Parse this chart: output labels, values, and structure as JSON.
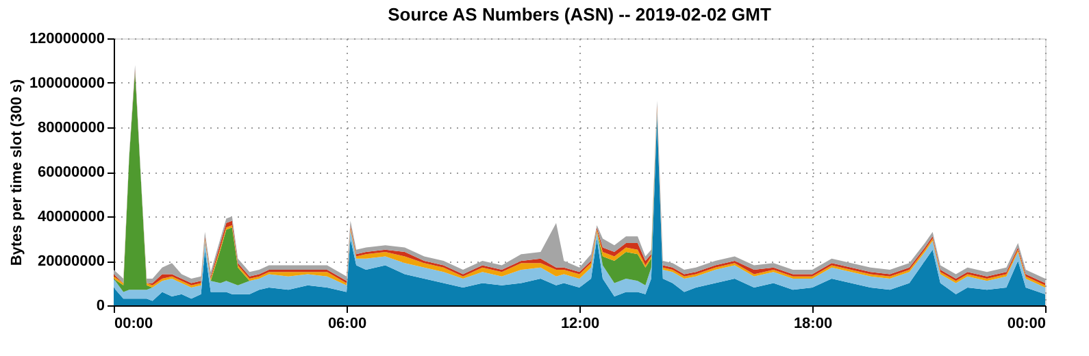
{
  "chart_data": {
    "type": "area",
    "stacked": true,
    "title": "Source AS Numbers (ASN) -- 2019-02-02 GMT",
    "ylabel": "Bytes per time slot (300 s)",
    "x": [
      0,
      0.25,
      0.4,
      0.55,
      0.7,
      0.85,
      1.0,
      1.25,
      1.5,
      1.75,
      2.0,
      2.25,
      2.35,
      2.5,
      2.75,
      2.9,
      3.05,
      3.2,
      3.5,
      3.75,
      4.0,
      4.5,
      5.0,
      5.5,
      6.0,
      6.1,
      6.25,
      6.5,
      7.0,
      7.5,
      8.0,
      8.5,
      9.0,
      9.5,
      10.0,
      10.5,
      11.0,
      11.4,
      11.6,
      12.0,
      12.3,
      12.45,
      12.6,
      12.9,
      13.2,
      13.5,
      13.7,
      13.85,
      14.0,
      14.15,
      14.4,
      14.7,
      15.0,
      15.5,
      16.0,
      16.5,
      17.0,
      17.5,
      18.0,
      18.5,
      19.0,
      19.5,
      20.0,
      20.5,
      20.9,
      21.1,
      21.3,
      21.7,
      22.0,
      22.5,
      23.0,
      23.3,
      23.5,
      24.0
    ],
    "series": [
      {
        "color": "#0a7fb0",
        "values": [
          8000000.0,
          3000000.0,
          3000000.0,
          3000000.0,
          3000000.0,
          3000000.0,
          2000000.0,
          6000000.0,
          4000000.0,
          5000000.0,
          3000000.0,
          5000000.0,
          25000000.0,
          6000000.0,
          6000000.0,
          6000000.0,
          5000000.0,
          5000000.0,
          5000000.0,
          7000000.0,
          8000000.0,
          7000000.0,
          9000000.0,
          8000000.0,
          6000000.0,
          30000000.0,
          18000000.0,
          16000000.0,
          18000000.0,
          14000000.0,
          12000000.0,
          10000000.0,
          8000000.0,
          10000000.0,
          9000000.0,
          10000000.0,
          12000000.0,
          9000000.0,
          10000000.0,
          8000000.0,
          12000000.0,
          30000000.0,
          12000000.0,
          4000000.0,
          6000000.0,
          6000000.0,
          5000000.0,
          12000000.0,
          85000000.0,
          12000000.0,
          10000000.0,
          6000000.0,
          8000000.0,
          10000000.0,
          12000000.0,
          8000000.0,
          10000000.0,
          7000000.0,
          8000000.0,
          12000000.0,
          10000000.0,
          8000000.0,
          7000000.0,
          10000000.0,
          20000000.0,
          25000000.0,
          10000000.0,
          5000000.0,
          8000000.0,
          7000000.0,
          8000000.0,
          20000000.0,
          8000000.0,
          5000000.0
        ]
      },
      {
        "color": "#86c2e4",
        "values": [
          4000000.0,
          3000000.0,
          4000000.0,
          4000000.0,
          4000000.0,
          4000000.0,
          6000000.0,
          5000000.0,
          8000000.0,
          5000000.0,
          5000000.0,
          4000000.0,
          4000000.0,
          5000000.0,
          4000000.0,
          5000000.0,
          5000000.0,
          4000000.0,
          6000000.0,
          5000000.0,
          6000000.0,
          6000000.0,
          5000000.0,
          5000000.0,
          3000000.0,
          4000000.0,
          3000000.0,
          5000000.0,
          4000000.0,
          5000000.0,
          5000000.0,
          5000000.0,
          4000000.0,
          5000000.0,
          4000000.0,
          6000000.0,
          5000000.0,
          4000000.0,
          4000000.0,
          4000000.0,
          5000000.0,
          3000000.0,
          6000000.0,
          6000000.0,
          6000000.0,
          5000000.0,
          4000000.0,
          5000000.0,
          3000000.0,
          4000000.0,
          5000000.0,
          6000000.0,
          5000000.0,
          6000000.0,
          6000000.0,
          5000000.0,
          5000000.0,
          5000000.0,
          4000000.0,
          5000000.0,
          5000000.0,
          5000000.0,
          5000000.0,
          5000000.0,
          4000000.0,
          4000000.0,
          4000000.0,
          5000000.0,
          5000000.0,
          4000000.0,
          5000000.0,
          4000000.0,
          4000000.0,
          3000000.0
        ]
      },
      {
        "color": "#4f9a2f",
        "values": [
          0,
          3000000.0,
          60000000.0,
          98000000.0,
          50000000.0,
          2000000.0,
          0,
          0,
          0,
          0,
          0,
          0,
          0,
          0,
          15000000.0,
          23000000.0,
          25000000.0,
          8000000.0,
          0,
          0,
          0,
          0,
          0,
          0,
          0,
          0,
          0,
          0,
          0,
          0,
          0,
          0,
          0,
          0,
          0,
          0,
          0,
          0,
          0,
          0,
          0,
          0,
          4000000.0,
          10000000.0,
          12000000.0,
          12000000.0,
          8000000.0,
          4000000.0,
          0,
          0,
          0,
          0,
          0,
          0,
          0,
          0,
          0,
          0,
          0,
          0,
          0,
          0,
          0,
          0,
          0,
          0,
          0,
          0,
          0,
          0,
          0,
          0,
          0,
          0
        ]
      },
      {
        "color": "#f0a30a",
        "values": [
          1000000.0,
          1000000.0,
          0,
          0,
          0,
          1000000.0,
          1000000.0,
          1000000.0,
          1000000.0,
          1000000.0,
          1000000.0,
          1000000.0,
          1000000.0,
          1000000.0,
          1000000.0,
          1000000.0,
          1000000.0,
          1000000.0,
          1000000.0,
          1000000.0,
          1000000.0,
          2000000.0,
          1000000.0,
          2000000.0,
          1000000.0,
          1000000.0,
          1000000.0,
          2000000.0,
          2000000.0,
          3000000.0,
          2000000.0,
          2000000.0,
          1000000.0,
          2000000.0,
          2000000.0,
          3000000.0,
          2000000.0,
          3000000.0,
          2000000.0,
          2000000.0,
          2000000.0,
          1000000.0,
          2000000.0,
          2000000.0,
          2000000.0,
          2000000.0,
          1000000.0,
          1000000.0,
          1000000.0,
          1000000.0,
          1000000.0,
          1000000.0,
          1000000.0,
          1000000.0,
          1000000.0,
          1000000.0,
          1000000.0,
          1000000.0,
          1000000.0,
          1000000.0,
          1000000.0,
          1000000.0,
          1000000.0,
          1000000.0,
          1000000.0,
          1000000.0,
          1000000.0,
          1000000.0,
          1000000.0,
          1000000.0,
          1000000.0,
          1000000.0,
          1000000.0,
          1000000.0
        ]
      },
      {
        "color": "#d0341a",
        "values": [
          1000000.0,
          0,
          0,
          1000000.0,
          0,
          0,
          1000000.0,
          2000000.0,
          1000000.0,
          1000000.0,
          1000000.0,
          1000000.0,
          1000000.0,
          1000000.0,
          2000000.0,
          2000000.0,
          2000000.0,
          1000000.0,
          1000000.0,
          1000000.0,
          1000000.0,
          1000000.0,
          1000000.0,
          1000000.0,
          1000000.0,
          1000000.0,
          1000000.0,
          1000000.0,
          1000000.0,
          2000000.0,
          1000000.0,
          1000000.0,
          1000000.0,
          1000000.0,
          1000000.0,
          1000000.0,
          2000000.0,
          1000000.0,
          1000000.0,
          1000000.0,
          1000000.0,
          1000000.0,
          2000000.0,
          2000000.0,
          2000000.0,
          3000000.0,
          2000000.0,
          1000000.0,
          1000000.0,
          1000000.0,
          1000000.0,
          1000000.0,
          1000000.0,
          1000000.0,
          1000000.0,
          2000000.0,
          1000000.0,
          1000000.0,
          1000000.0,
          1000000.0,
          1000000.0,
          1000000.0,
          1000000.0,
          1000000.0,
          1000000.0,
          1000000.0,
          1000000.0,
          1000000.0,
          1000000.0,
          1000000.0,
          1000000.0,
          1000000.0,
          1000000.0,
          1000000.0
        ]
      },
      {
        "color": "#a5a5a5",
        "values": [
          2000000.0,
          2000000.0,
          1000000.0,
          2000000.0,
          1000000.0,
          2000000.0,
          2000000.0,
          3000000.0,
          5000000.0,
          2000000.0,
          2000000.0,
          2000000.0,
          2000000.0,
          2000000.0,
          2000000.0,
          2000000.0,
          2000000.0,
          2000000.0,
          2000000.0,
          2000000.0,
          2000000.0,
          2000000.0,
          2000000.0,
          2000000.0,
          2000000.0,
          2000000.0,
          2000000.0,
          2000000.0,
          2000000.0,
          2000000.0,
          2000000.0,
          2000000.0,
          2000000.0,
          2000000.0,
          2000000.0,
          3000000.0,
          3000000.0,
          20000000.0,
          3000000.0,
          2000000.0,
          3000000.0,
          1000000.0,
          4000000.0,
          3000000.0,
          3000000.0,
          3000000.0,
          2000000.0,
          2000000.0,
          2000000.0,
          2000000.0,
          2000000.0,
          2000000.0,
          2000000.0,
          2000000.0,
          2000000.0,
          2000000.0,
          2000000.0,
          2000000.0,
          2000000.0,
          2000000.0,
          2000000.0,
          2000000.0,
          2000000.0,
          2000000.0,
          2000000.0,
          2000000.0,
          2000000.0,
          2000000.0,
          2000000.0,
          2000000.0,
          2000000.0,
          2000000.0,
          2000000.0,
          2000000.0
        ]
      }
    ],
    "xlim": [
      0,
      24
    ],
    "xticks": [
      {
        "value": 0,
        "label": "00:00"
      },
      {
        "value": 6,
        "label": "06:00"
      },
      {
        "value": 12,
        "label": "12:00"
      },
      {
        "value": 18,
        "label": "18:00"
      },
      {
        "value": 24,
        "label": "00:00"
      }
    ],
    "ylim": [
      0,
      120000000
    ],
    "yticks": [
      0,
      20000000,
      40000000,
      60000000,
      80000000,
      100000000,
      120000000
    ],
    "grid": true,
    "legend": false
  }
}
